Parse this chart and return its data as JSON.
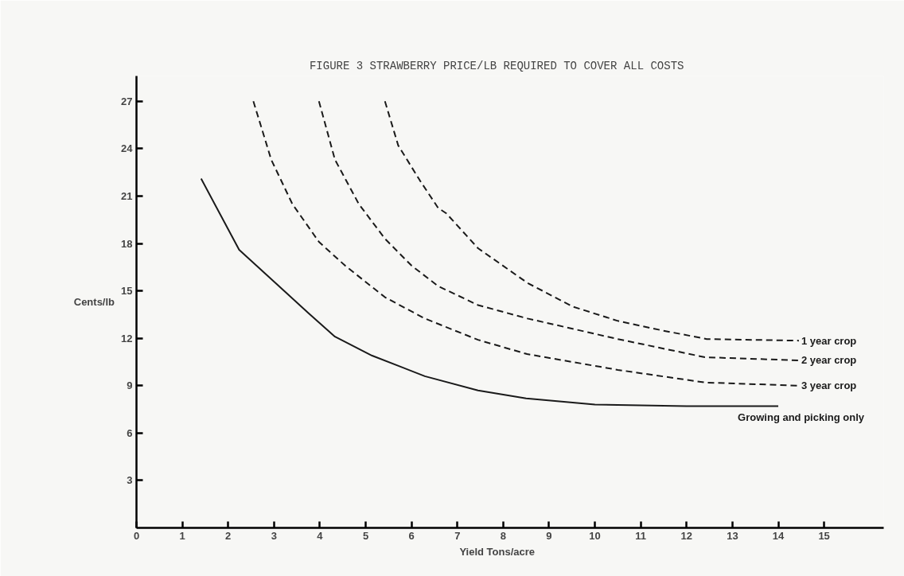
{
  "chart_data": {
    "type": "line",
    "title": "FIGURE 3     STRAWBERRY PRICE/LB REQUIRED TO COVER ALL COSTS",
    "xlabel": "Yield          Tons/acre",
    "ylabel": "Cents/lb",
    "xlim": [
      0,
      16.3
    ],
    "ylim": [
      0,
      28.6
    ],
    "xticks": [
      0,
      1,
      2,
      3,
      4,
      5,
      6,
      7,
      8,
      9,
      10,
      11,
      12,
      13,
      14,
      15
    ],
    "yticks": [
      3,
      6,
      9,
      12,
      15,
      18,
      21,
      24,
      27
    ],
    "grid": false,
    "legend": false,
    "marker": "none",
    "series": [
      {
        "name": "1 year crop",
        "color": "#1a1a1a",
        "line_style": "dashed",
        "x": [
          5.42,
          5.71,
          6.18,
          6.58,
          6.76,
          7.45,
          8.53,
          9.52,
          10.5,
          11.46,
          12.44,
          14.45
        ],
        "values": [
          27,
          24.2,
          22.0,
          20.25,
          19.9,
          17.7,
          15.5,
          14.0,
          13.1,
          12.5,
          11.95,
          11.85
        ]
      },
      {
        "name": "2 year crop",
        "color": "#1a1a1a",
        "line_style": "dashed",
        "x": [
          3.98,
          4.33,
          4.85,
          5.42,
          6.0,
          6.58,
          7.45,
          8.53,
          10.5,
          12.4,
          14.45
        ],
        "values": [
          27,
          23.3,
          20.5,
          18.3,
          16.6,
          15.3,
          14.1,
          13.25,
          11.95,
          10.8,
          10.6
        ]
      },
      {
        "name": "3 year crop",
        "color": "#1a1a1a",
        "line_style": "dashed",
        "x": [
          2.55,
          2.94,
          3.4,
          3.98,
          4.55,
          5.42,
          6.29,
          7.45,
          8.52,
          10.5,
          12.4,
          14.45
        ],
        "values": [
          27,
          23.3,
          20.5,
          18.1,
          16.6,
          14.6,
          13.25,
          11.9,
          11.0,
          10.0,
          9.2,
          9.0
        ]
      },
      {
        "name": "Growing and picking only",
        "color": "#1a1a1a",
        "line_style": "solid",
        "x": [
          1.41,
          2.24,
          3.11,
          3.75,
          4.33,
          5.14,
          6.29,
          7.45,
          8.5,
          10.0,
          12.0,
          14.0
        ],
        "values": [
          22.1,
          17.6,
          15.3,
          13.6,
          12.1,
          10.9,
          9.6,
          8.7,
          8.2,
          7.8,
          7.7,
          7.7
        ]
      }
    ]
  }
}
